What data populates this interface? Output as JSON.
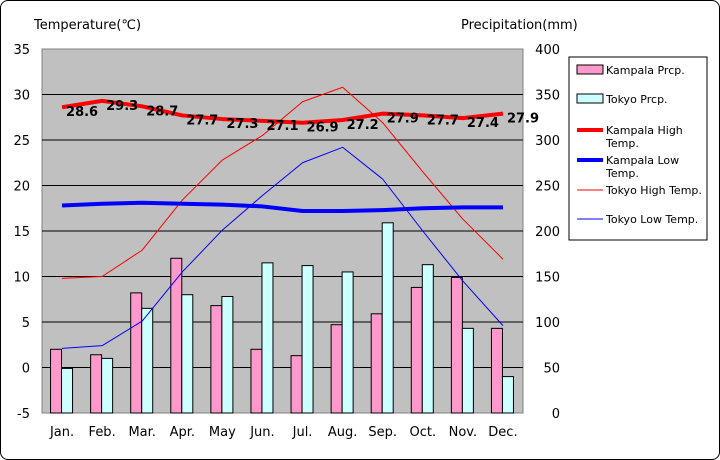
{
  "chart_data": {
    "type": "bar+line",
    "left_axis_title": "Temperature(℃)",
    "right_axis_title": "Precipitation(mm)",
    "categories": [
      "Jan.",
      "Feb.",
      "Mar.",
      "Apr.",
      "May",
      "Jun.",
      "Jul.",
      "Aug.",
      "Sep.",
      "Oct.",
      "Nov.",
      "Dec."
    ],
    "ylim_left": [
      -5,
      35
    ],
    "yticks_left": [
      -5,
      0,
      5,
      10,
      15,
      20,
      25,
      30,
      35
    ],
    "ylim_right": [
      0,
      400
    ],
    "yticks_right": [
      0,
      50,
      100,
      150,
      200,
      250,
      300,
      350,
      400
    ],
    "grid": "horizontal",
    "legend_position": "right",
    "bar_series": [
      {
        "name": "Kampala Prcp.",
        "color": "#ff99cc",
        "values": [
          70,
          64,
          132,
          170,
          118,
          70,
          63,
          97,
          109,
          138,
          149,
          93
        ]
      },
      {
        "name": "Tokyo Prcp.",
        "color": "#ccffff",
        "values": [
          49,
          60,
          115,
          130,
          128,
          165,
          162,
          155,
          209,
          163,
          93,
          40
        ]
      }
    ],
    "line_series": [
      {
        "name": "Kampala High Temp.",
        "color": "#ff0000",
        "width": 4,
        "values": [
          28.6,
          29.3,
          28.7,
          27.7,
          27.3,
          27.1,
          26.9,
          27.2,
          27.9,
          27.7,
          27.4,
          27.9
        ],
        "labels": [
          "28.6",
          "29.3",
          "28.7",
          "27.7",
          "27.3",
          "27.1",
          "26.9",
          "27.2",
          "27.9",
          "27.7",
          "27.4",
          "27.9"
        ]
      },
      {
        "name": "Kampala Low Temp.",
        "color": "#0000ff",
        "width": 4,
        "values": [
          17.8,
          18.0,
          18.1,
          18.0,
          17.9,
          17.7,
          17.2,
          17.2,
          17.3,
          17.5,
          17.6,
          17.6
        ]
      },
      {
        "name": "Tokyo High Temp.",
        "color": "#ff0000",
        "width": 1,
        "values": [
          9.8,
          10.0,
          12.9,
          18.4,
          22.8,
          25.5,
          29.2,
          30.8,
          26.9,
          21.5,
          16.3,
          11.9
        ]
      },
      {
        "name": "Tokyo Low Temp.",
        "color": "#0000ff",
        "width": 1,
        "values": [
          2.1,
          2.4,
          5.1,
          10.5,
          15.1,
          18.9,
          22.5,
          24.2,
          20.7,
          15.0,
          9.5,
          4.6
        ]
      }
    ]
  }
}
